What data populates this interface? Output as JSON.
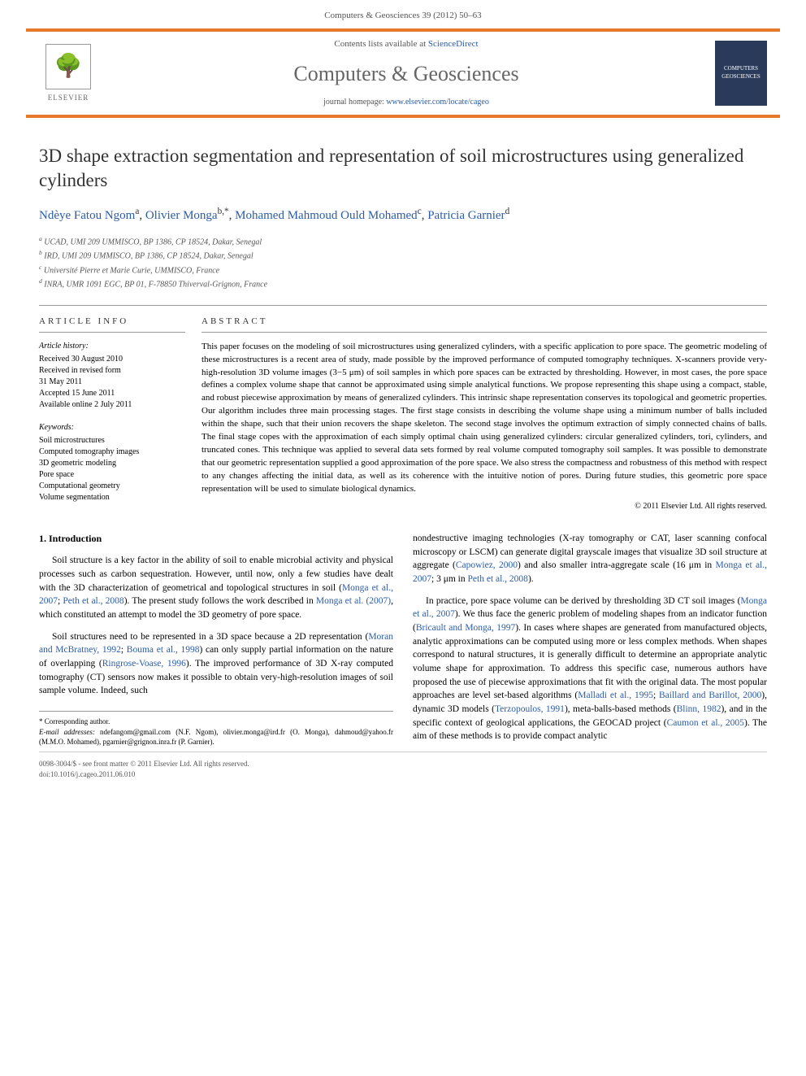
{
  "header": {
    "citation": "Computers & Geosciences 39 (2012) 50–63"
  },
  "banner": {
    "contents_prefix": "Contents lists available at ",
    "contents_link": "ScienceDirect",
    "journal_name": "Computers & Geosciences",
    "homepage_prefix": "journal homepage: ",
    "homepage_url": "www.elsevier.com/locate/cageo",
    "publisher": "ELSEVIER",
    "cover_text": "COMPUTERS GEOSCIENCES"
  },
  "title": "3D shape extraction segmentation and representation of soil microstructures using generalized cylinders",
  "authors": [
    {
      "name": "Ndèye Fatou Ngom",
      "aff": "a"
    },
    {
      "name": "Olivier Monga",
      "aff": "b,*"
    },
    {
      "name": "Mohamed Mahmoud Ould Mohamed",
      "aff": "c"
    },
    {
      "name": "Patricia Garnier",
      "aff": "d"
    }
  ],
  "affiliations": [
    {
      "key": "a",
      "text": "UCAD, UMI 209 UMMISCO, BP 1386, CP 18524, Dakar, Senegal"
    },
    {
      "key": "b",
      "text": "IRD, UMI 209 UMMISCO, BP 1386, CP 18524, Dakar, Senegal"
    },
    {
      "key": "c",
      "text": "Université Pierre et Marie Curie, UMMISCO, France"
    },
    {
      "key": "d",
      "text": "INRA, UMR 1091 EGC, BP 01, F-78850 Thiverval-Grignon, France"
    }
  ],
  "article_info": {
    "heading": "ARTICLE INFO",
    "history_label": "Article history:",
    "history": [
      "Received 30 August 2010",
      "Received in revised form",
      "31 May 2011",
      "Accepted 15 June 2011",
      "Available online 2 July 2011"
    ],
    "keywords_label": "Keywords:",
    "keywords": [
      "Soil microstructures",
      "Computed tomography images",
      "3D geometric modeling",
      "Pore space",
      "Computational geometry",
      "Volume segmentation"
    ]
  },
  "abstract": {
    "heading": "ABSTRACT",
    "text": "This paper focuses on the modeling of soil microstructures using generalized cylinders, with a specific application to pore space. The geometric modeling of these microstructures is a recent area of study, made possible by the improved performance of computed tomography techniques. X-scanners provide very-high-resolution 3D volume images (3−5 μm) of soil samples in which pore spaces can be extracted by thresholding. However, in most cases, the pore space defines a complex volume shape that cannot be approximated using simple analytical functions. We propose representing this shape using a compact, stable, and robust piecewise approximation by means of generalized cylinders. This intrinsic shape representation conserves its topological and geometric properties. Our algorithm includes three main processing stages. The first stage consists in describing the volume shape using a minimum number of balls included within the shape, such that their union recovers the shape skeleton. The second stage involves the optimum extraction of simply connected chains of balls. The final stage copes with the approximation of each simply optimal chain using generalized cylinders: circular generalized cylinders, tori, cylinders, and truncated cones. This technique was applied to several data sets formed by real volume computed tomography soil samples. It was possible to demonstrate that our geometric representation supplied a good approximation of the pore space. We also stress the compactness and robustness of this method with respect to any changes affecting the initial data, as well as its coherence with the intuitive notion of pores. During future studies, this geometric pore space representation will be used to simulate biological dynamics.",
    "copyright": "© 2011 Elsevier Ltd. All rights reserved."
  },
  "body": {
    "section_heading": "1. Introduction",
    "col1_p1": "Soil structure is a key factor in the ability of soil to enable microbial activity and physical processes such as carbon sequestration. However, until now, only a few studies have dealt with the 3D characterization of geometrical and topological structures in soil (",
    "col1_p1_cite1": "Monga et al., 2007",
    "col1_p1_mid1": "; ",
    "col1_p1_cite2": "Peth et al., 2008",
    "col1_p1_mid2": "). The present study follows the work described in ",
    "col1_p1_cite3": "Monga et al. (2007)",
    "col1_p1_end": ", which constituted an attempt to model the 3D geometry of pore space.",
    "col1_p2_start": "Soil structures need to be represented in a 3D space because a 2D representation (",
    "col1_p2_cite1": "Moran and McBratney, 1992",
    "col1_p2_mid1": "; ",
    "col1_p2_cite2": "Bouma et al., 1998",
    "col1_p2_mid2": ") can only supply partial information on the nature of overlapping (",
    "col1_p2_cite3": "Ringrose-Voase, 1996",
    "col1_p2_end": "). The improved performance of 3D X-ray computed tomography (CT) sensors now makes it possible to obtain very-high-resolution images of soil sample volume. Indeed, such",
    "col2_p1_start": "nondestructive imaging technologies (X-ray tomography or CAT, laser scanning confocal microscopy or LSCM) can generate digital grayscale images that visualize 3D soil structure at aggregate (",
    "col2_p1_cite1": "Capowiez, 2000",
    "col2_p1_mid1": ") and also smaller intra-aggregate scale (16 μm in ",
    "col2_p1_cite2": "Monga et al., 2007",
    "col2_p1_mid2": "; 3 μm in ",
    "col2_p1_cite3": "Peth et al., 2008",
    "col2_p1_end": ").",
    "col2_p2_start": "In practice, pore space volume can be derived by thresholding 3D CT soil images (",
    "col2_p2_cite1": "Monga et al., 2007",
    "col2_p2_mid1": "). We thus face the generic problem of modeling shapes from an indicator function (",
    "col2_p2_cite2": "Bricault and Monga, 1997",
    "col2_p2_mid2": "). In cases where shapes are generated from manufactured objects, analytic approximations can be computed using more or less complex methods. When shapes correspond to natural structures, it is generally difficult to determine an appropriate analytic volume shape for approximation. To address this specific case, numerous authors have proposed the use of piecewise approximations that fit with the original data. The most popular approaches are level set-based algorithms (",
    "col2_p2_cite3": "Malladi et al., 1995",
    "col2_p2_mid3": "; ",
    "col2_p2_cite4": "Baillard and Barillot, 2000",
    "col2_p2_mid4": "), dynamic 3D models (",
    "col2_p2_cite5": "Terzopoulos, 1991",
    "col2_p2_mid5": "), meta-balls-based methods (",
    "col2_p2_cite6": "Blinn, 1982",
    "col2_p2_mid6": "), and in the specific context of geological applications, the GEOCAD project (",
    "col2_p2_cite7": "Caumon et al., 2005",
    "col2_p2_end": "). The aim of these methods is to provide compact analytic"
  },
  "footnotes": {
    "corr": "* Corresponding author.",
    "email_label": "E-mail addresses: ",
    "emails": "ndefangom@gmail.com (N.F. Ngom), olivier.monga@ird.fr (O. Monga), dahmoud@yahoo.fr (M.M.O. Mohamed), pgarnier@grignon.inra.fr (P. Garnier)."
  },
  "footer": {
    "issn": "0098-3004/$ - see front matter © 2011 Elsevier Ltd. All rights reserved.",
    "doi": "doi:10.1016/j.cageo.2011.06.010"
  }
}
